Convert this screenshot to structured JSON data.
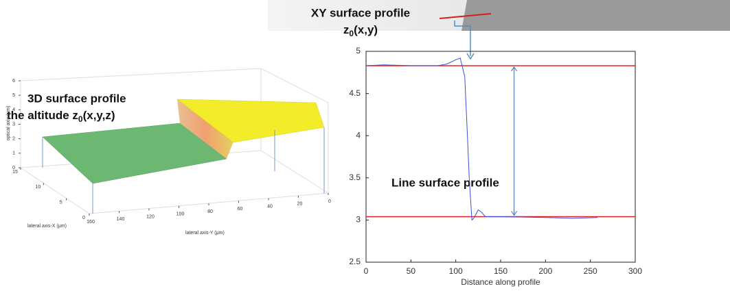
{
  "chart_data": [
    {
      "type": "surface3d",
      "annotation": "3D surface profile",
      "annotation2_main": "the altitude z",
      "annotation2_sub": "0",
      "annotation2_rest": "(x,y,z)",
      "zlabel": "optical axis (μm)",
      "xlabel": "lateral axis-X (μm)",
      "ylabel": "lateral axis-Y (μm)",
      "zlim": [
        0,
        6
      ],
      "zticks": [
        0,
        1,
        2,
        3,
        4,
        5,
        6
      ],
      "xlim": [
        0,
        15
      ],
      "xticks": [
        0,
        5,
        10,
        15
      ],
      "ylim": [
        0,
        160
      ],
      "yticks": [
        0,
        20,
        40,
        60,
        80,
        100,
        120,
        140,
        160
      ]
    },
    {
      "type": "line",
      "title": "XY surface profile",
      "title2_main": "z",
      "title2_sub": "0",
      "title2_rest": "(x,y)",
      "annotation": "Line surface profile",
      "xlabel": "Distance along profile",
      "xlim": [
        0,
        300
      ],
      "xticks": [
        0,
        50,
        100,
        150,
        200,
        250,
        300
      ],
      "ylim": [
        2.5,
        5
      ],
      "yticks": [
        2.5,
        3,
        3.5,
        4,
        4.5,
        5
      ],
      "series": [
        {
          "color": "#3b4fe0",
          "x": [
            0,
            20,
            50,
            80,
            90,
            100,
            105,
            110,
            113,
            115,
            118,
            120,
            125,
            128,
            133,
            150,
            200,
            230,
            258
          ],
          "values": [
            4.83,
            4.84,
            4.83,
            4.83,
            4.85,
            4.9,
            4.92,
            4.7,
            4.0,
            3.5,
            3.0,
            3.02,
            3.12,
            3.1,
            3.04,
            3.04,
            3.03,
            3.02,
            3.03
          ]
        }
      ],
      "reference_lines": {
        "color": "#e02020",
        "values": [
          4.83,
          3.04
        ]
      }
    }
  ]
}
